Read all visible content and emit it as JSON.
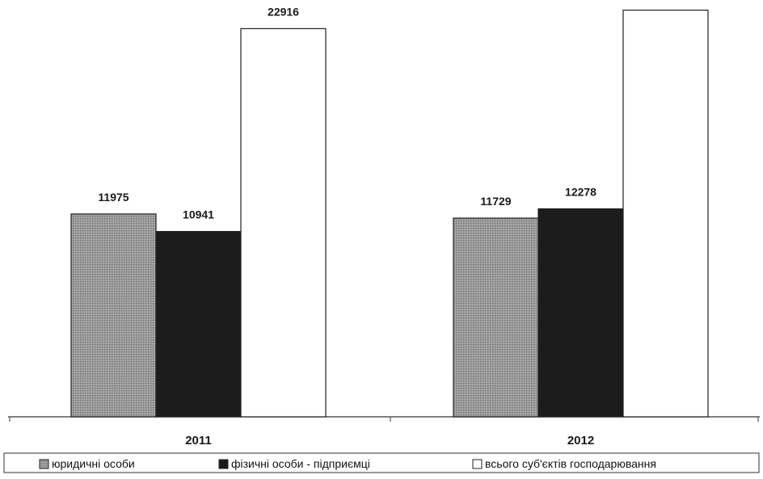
{
  "chart_data": {
    "type": "bar",
    "categories": [
      "2011",
      "2012"
    ],
    "series": [
      {
        "name": "юридичні особи",
        "values": [
          11975,
          11729
        ],
        "color": "#8e8e8e",
        "pattern": "hatched-gray"
      },
      {
        "name": "фізичні особи - підприємці",
        "values": [
          10941,
          12278
        ],
        "color": "#1c1c1c"
      },
      {
        "name": "всього суб'єктів господарювання",
        "values": [
          22916,
          24007
        ],
        "color": "#ffffff"
      }
    ],
    "ylim": [
      0,
      24500
    ],
    "grid": false,
    "legend": "bottom",
    "data_labels": true
  }
}
